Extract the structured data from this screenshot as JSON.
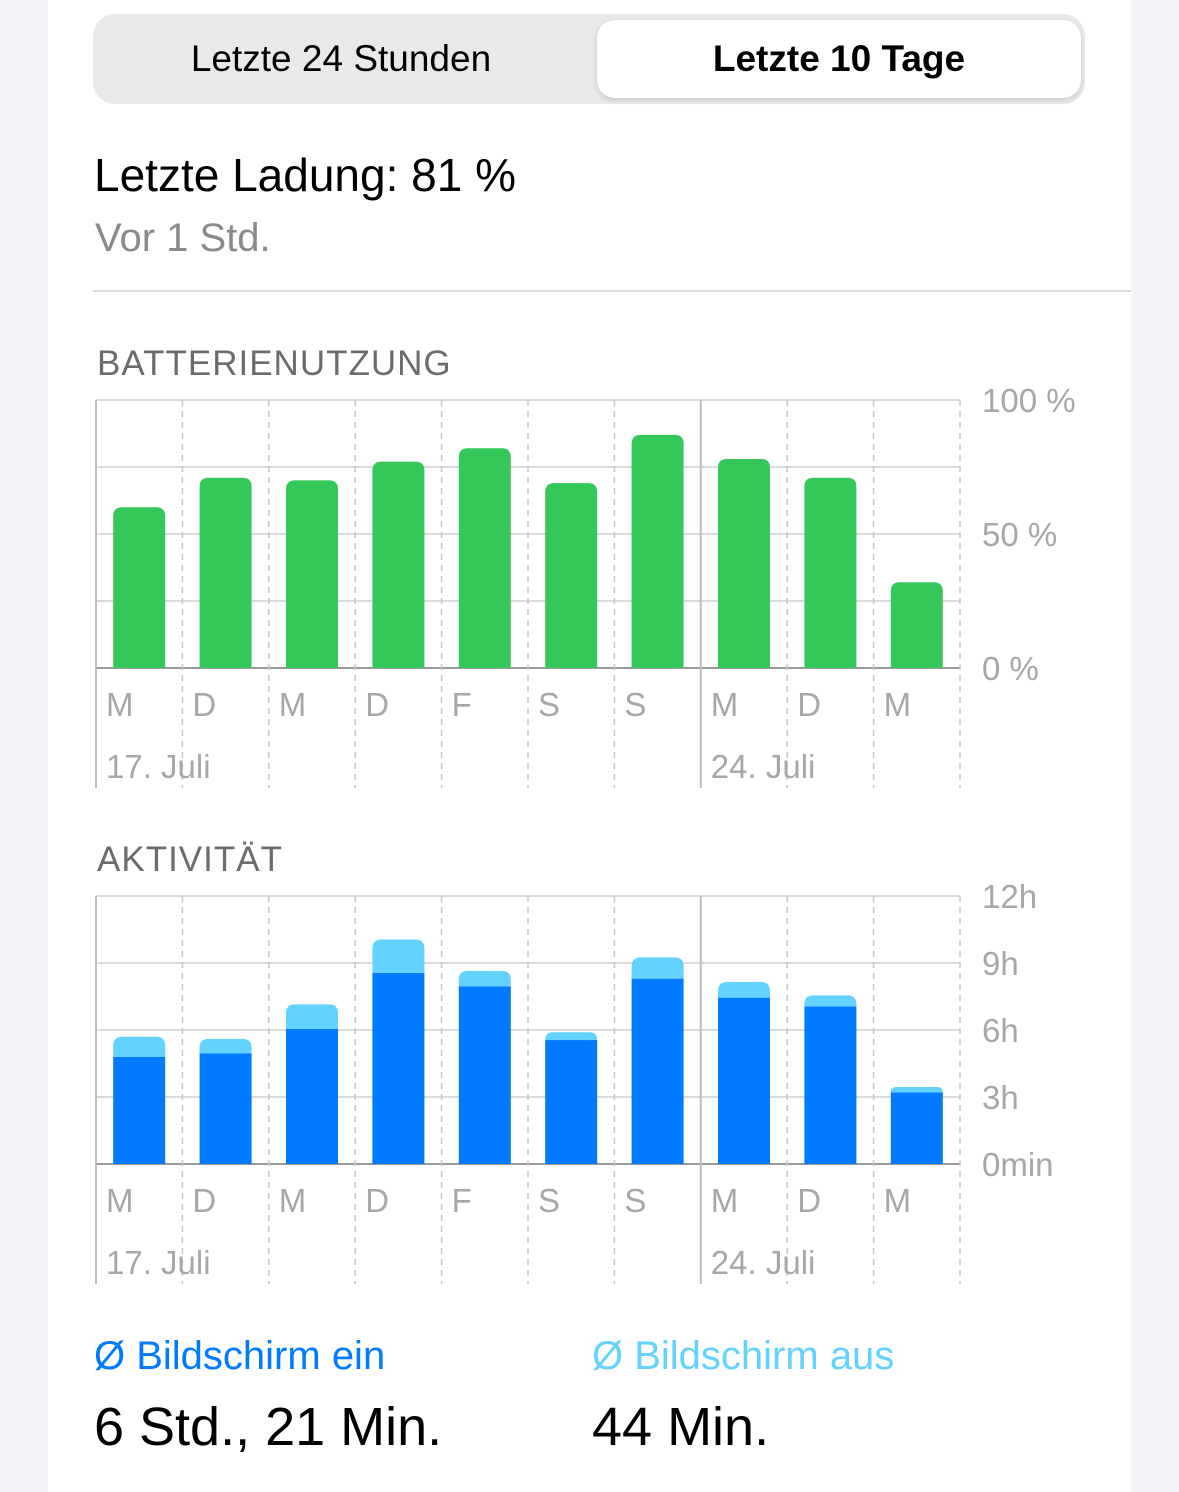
{
  "tabs": [
    {
      "label": "Letzte 24 Stunden",
      "selected": false
    },
    {
      "label": "Letzte 10 Tage",
      "selected": true
    }
  ],
  "last_charge": {
    "label": "Letzte Ladung: 81 %",
    "time": "Vor 1 Std."
  },
  "colors": {
    "green": "#34c759",
    "blue": "#007aff",
    "light_blue": "#64d2ff",
    "gray_text": "#a7a7ab"
  },
  "chart_data": [
    {
      "type": "bar",
      "title": "BATTERIENUTZUNG",
      "categories": [
        "M",
        "D",
        "M",
        "D",
        "F",
        "S",
        "S",
        "M",
        "D",
        "M"
      ],
      "date_labels": [
        {
          "index": 0,
          "label": "17. Juli"
        },
        {
          "index": 7,
          "label": "24. Juli"
        }
      ],
      "ylim": [
        0,
        100
      ],
      "yticks": [
        {
          "value": 100,
          "label": "100 %"
        },
        {
          "value": 50,
          "label": "50 %"
        },
        {
          "value": 0,
          "label": "0 %"
        }
      ],
      "grid_values": [
        0,
        25,
        50,
        75,
        100
      ],
      "series": [
        {
          "values": [
            60,
            71,
            70,
            77,
            82,
            69,
            87,
            78,
            71,
            32
          ]
        }
      ]
    },
    {
      "type": "bar",
      "title": "AKTIVITÄT",
      "stacked": true,
      "categories": [
        "M",
        "D",
        "M",
        "D",
        "F",
        "S",
        "S",
        "M",
        "D",
        "M"
      ],
      "date_labels": [
        {
          "index": 0,
          "label": "17. Juli"
        },
        {
          "index": 7,
          "label": "24. Juli"
        }
      ],
      "ylim": [
        0,
        12
      ],
      "yticks": [
        {
          "value": 12,
          "label": "12h"
        },
        {
          "value": 9,
          "label": "9h"
        },
        {
          "value": 6,
          "label": "6h"
        },
        {
          "value": 3,
          "label": "3h"
        },
        {
          "value": 0,
          "label": "0min"
        }
      ],
      "grid_values": [
        0,
        3,
        6,
        9,
        12
      ],
      "series": [
        {
          "values": [
            4.8,
            4.95,
            6.05,
            8.55,
            7.95,
            5.55,
            8.3,
            7.45,
            7.05,
            3.2
          ]
        },
        {
          "values": [
            0.9,
            0.65,
            1.1,
            1.5,
            0.7,
            0.35,
            0.95,
            0.7,
            0.5,
            0.25
          ]
        }
      ]
    }
  ],
  "legend": {
    "screen_on": {
      "label": "Ø Bildschirm ein",
      "value": "6 Std., 21 Min."
    },
    "screen_off": {
      "label": "Ø Bildschirm aus",
      "value": "44 Min."
    }
  }
}
